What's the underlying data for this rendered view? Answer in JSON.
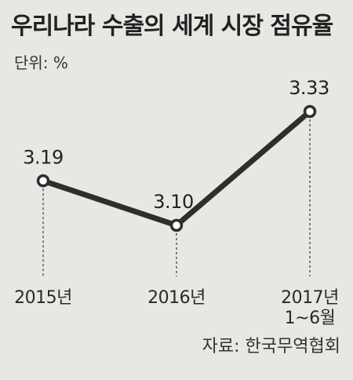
{
  "title": "우리나라 수출의 세계 시장 점유율",
  "unit_label": "단위: %",
  "source": "자료: 한국무역협회",
  "chart_data": {
    "type": "line",
    "title": "우리나라 수출의 세계 시장 점유율",
    "unit": "%",
    "categories": [
      [
        "2015년"
      ],
      [
        "2016년"
      ],
      [
        "2017년",
        "1~6월"
      ]
    ],
    "values": [
      3.19,
      3.1,
      3.33
    ],
    "data_labels": [
      "3.19",
      "3.10",
      "3.33"
    ],
    "grid": false,
    "colors": {
      "line": "#2e2e2e",
      "marker_fill": "#ffffff",
      "guide": "#444444"
    }
  }
}
